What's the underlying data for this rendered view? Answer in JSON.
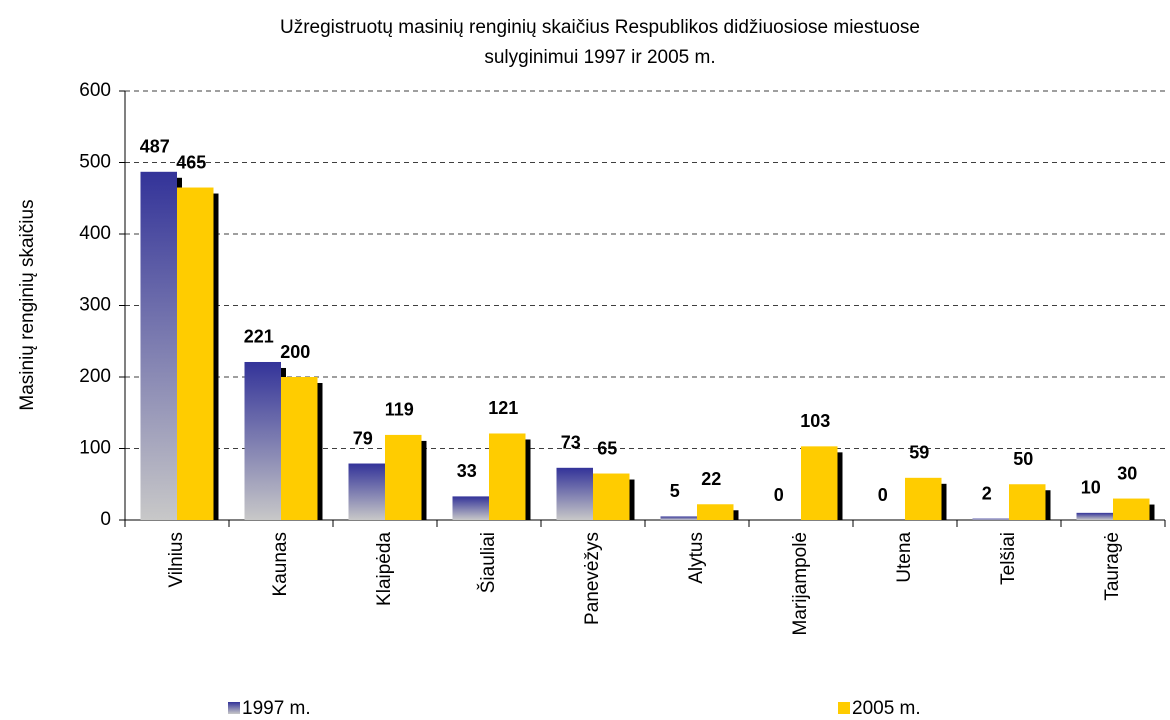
{
  "chart_data": {
    "type": "bar",
    "title": [
      "Užregistruotų masinių renginių skaičius Respublikos didžiuosiose miestuose",
      "sulyginimui 1997 ir 2005 m."
    ],
    "y_label": "Masinių renginių skaičius",
    "categories": [
      "Vilnius",
      "Kaunas",
      "Klaipėda",
      "Šiauliai",
      "Panevėžys",
      "Alytus",
      "Marijampolė",
      "Utena",
      "Telšiai",
      "Tauragė"
    ],
    "series": [
      {
        "name": "1997 m.",
        "color": "#333399",
        "values": [
          487,
          221,
          79,
          33,
          73,
          5,
          0,
          0,
          2,
          10
        ]
      },
      {
        "name": "2005 m.",
        "color": "#ffcc00",
        "values": [
          465,
          200,
          119,
          121,
          65,
          22,
          103,
          59,
          50,
          30
        ]
      }
    ],
    "ylim": [
      0,
      600
    ],
    "yticks": [
      0,
      100,
      200,
      300,
      400,
      500,
      600
    ],
    "grid": true
  }
}
